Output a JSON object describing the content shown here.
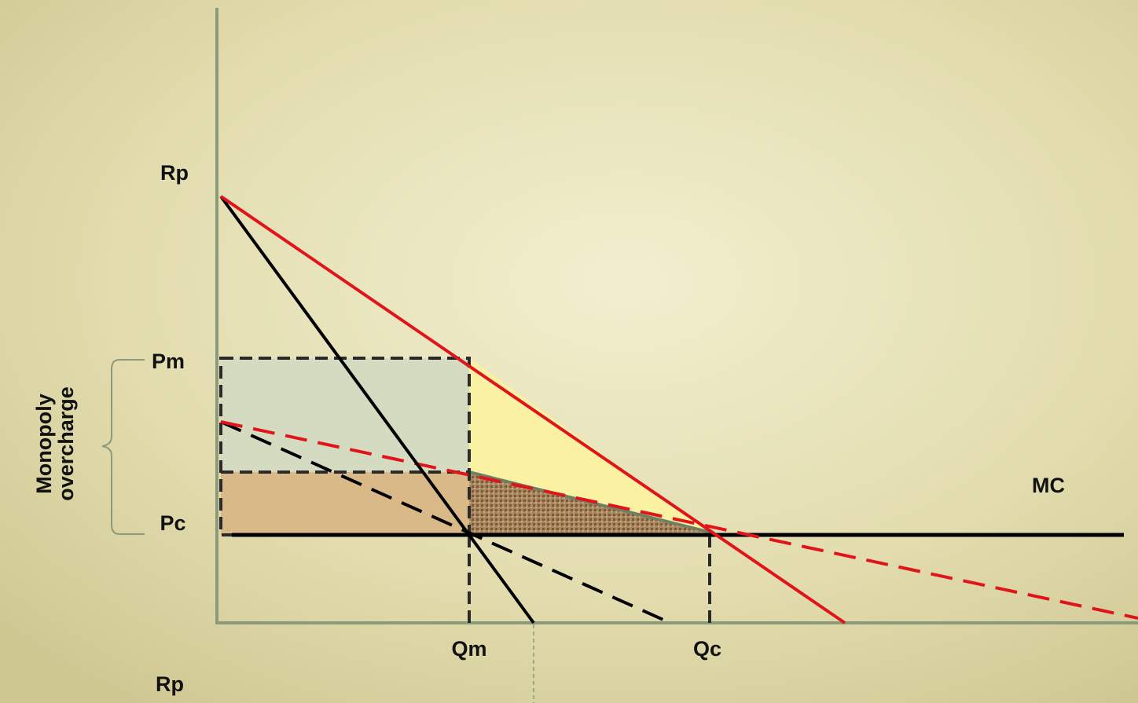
{
  "labels": {
    "rp_top": "Rp",
    "pm": "Pm",
    "pc": "Pc",
    "mc": "MC",
    "qm": "Qm",
    "qc": "Qc",
    "rp_bottom": "Rp",
    "overcharge": [
      "Monopoly",
      "overcharge"
    ]
  }
}
